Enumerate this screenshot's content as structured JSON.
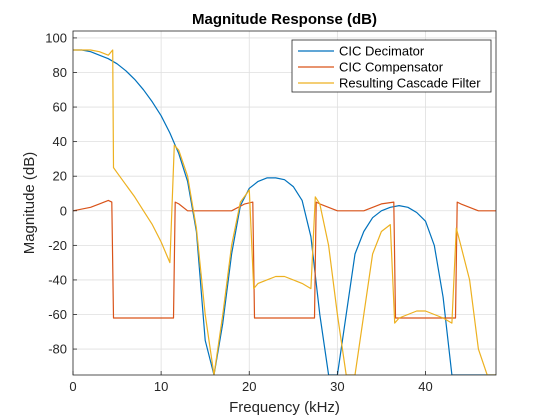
{
  "chart_data": {
    "type": "line",
    "title": "Magnitude Response (dB)",
    "xlabel": "Frequency (kHz)",
    "ylabel": "Magnitude (dB)",
    "xlim": [
      0,
      48
    ],
    "ylim": [
      -95,
      104
    ],
    "xticks": [
      0,
      10,
      20,
      30,
      40
    ],
    "yticks": [
      -80,
      -60,
      -40,
      -20,
      0,
      20,
      40,
      60,
      80,
      100
    ],
    "grid": true,
    "legend_position": "top-right",
    "series": [
      {
        "name": "CIC Decimator",
        "color": "#0072bd",
        "x": [
          0,
          1,
          2,
          3,
          4,
          5,
          6,
          7,
          8,
          9,
          10,
          11,
          12,
          13,
          14,
          15,
          16,
          17,
          18,
          19,
          20,
          21,
          22,
          23,
          24,
          25,
          26,
          27,
          28,
          29,
          30,
          31,
          32,
          33,
          34,
          35,
          36,
          37,
          38,
          39,
          40,
          41,
          42,
          43,
          44,
          45,
          46,
          47,
          48
        ],
        "y": [
          93,
          93,
          92,
          90,
          88,
          85,
          81,
          76,
          70,
          63,
          55,
          45,
          33,
          17,
          -12,
          -75,
          -95,
          -65,
          -25,
          3,
          13,
          17,
          19,
          19,
          18,
          14,
          6,
          -15,
          -60,
          -95,
          -95,
          -60,
          -25,
          -12,
          -4,
          0,
          2,
          3,
          2,
          -1,
          -6,
          -20,
          -50,
          -95,
          -95,
          -95,
          -95,
          -95,
          -95
        ]
      },
      {
        "name": "CIC Compensator",
        "color": "#d95319",
        "x": [
          0,
          2,
          3,
          4,
          4.4,
          4.6,
          5,
          8,
          11.4,
          11.6,
          12,
          13,
          15,
          18,
          19.5,
          20.4,
          20.6,
          22,
          26,
          27.4,
          27.6,
          28,
          30,
          33,
          35,
          36.4,
          36.6,
          38,
          42,
          43.4,
          43.6,
          44,
          46,
          48
        ],
        "y": [
          0,
          2,
          4,
          6,
          5,
          -62,
          -62,
          -62,
          -62,
          5,
          4,
          0,
          0,
          0,
          4,
          5,
          -62,
          -62,
          -62,
          -62,
          5,
          4,
          0,
          0,
          4,
          5,
          -62,
          -62,
          -62,
          -62,
          5,
          4,
          0,
          0
        ]
      },
      {
        "name": "Resulting Cascade Filter",
        "color": "#edb120",
        "x": [
          0,
          1,
          2,
          3,
          4,
          4.5,
          4.6,
          5,
          6,
          7,
          8,
          9,
          10,
          11,
          11.5,
          12,
          13,
          14,
          15,
          16,
          17,
          18,
          19,
          20,
          20.5,
          21,
          22,
          23,
          24,
          25,
          26,
          27,
          27.5,
          28,
          29,
          30,
          31,
          32,
          33,
          34,
          35,
          36,
          36.5,
          37,
          38,
          39,
          40,
          41,
          42,
          43,
          43.5,
          44,
          45,
          46,
          47,
          48
        ],
        "y": [
          93,
          93,
          93,
          92,
          90,
          93,
          25,
          22,
          15,
          8,
          0,
          -8,
          -18,
          -30,
          38,
          35,
          20,
          -10,
          -60,
          -95,
          -60,
          -20,
          5,
          12,
          -45,
          -42,
          -40,
          -38,
          -38,
          -40,
          -42,
          -45,
          8,
          4,
          -20,
          -60,
          -95,
          -95,
          -60,
          -25,
          -12,
          -8,
          -65,
          -62,
          -60,
          -58,
          -58,
          -60,
          -62,
          -65,
          -10,
          -20,
          -40,
          -80,
          -95,
          -95
        ]
      }
    ]
  }
}
